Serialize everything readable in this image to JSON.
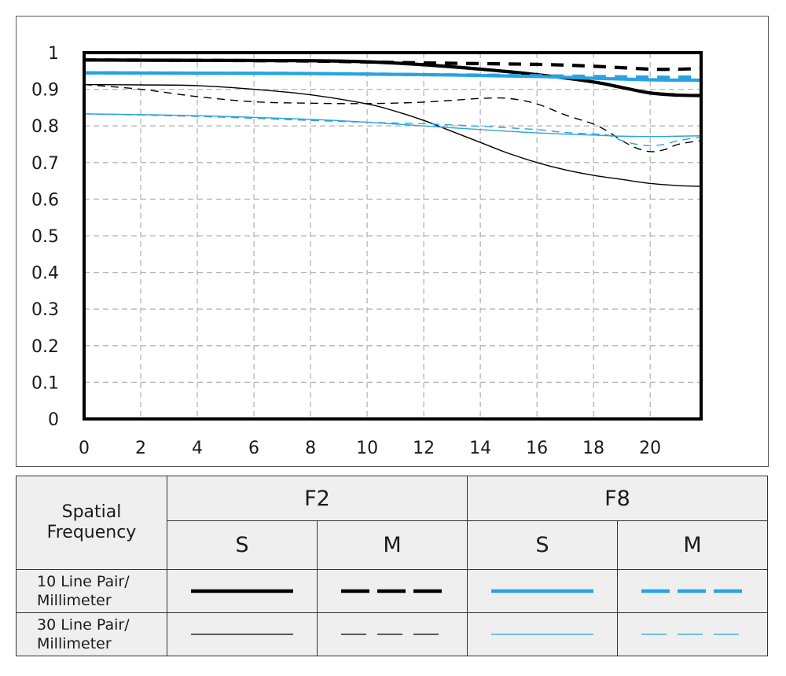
{
  "chart_data": {
    "type": "line",
    "title": "",
    "xlabel": "",
    "ylabel": "",
    "xlim": [
      0,
      21.8
    ],
    "ylim": [
      0,
      1
    ],
    "grid": true,
    "x_ticks": [
      "0",
      "2",
      "4",
      "6",
      "8",
      "10",
      "12",
      "14",
      "16",
      "18",
      "20"
    ],
    "y_ticks": [
      "0",
      "0.1",
      "0.2",
      "0.3",
      "0.4",
      "0.5",
      "0.6",
      "0.7",
      "0.8",
      "0.9",
      "1"
    ],
    "series": [
      {
        "name": "F2 S 10 Line Pair/Millimeter",
        "aperture": "F2",
        "direction": "S",
        "frequency": "10",
        "color": "#000000",
        "dashed": false,
        "weight": "thick",
        "x": [
          0,
          4,
          8,
          10,
          12,
          14,
          16,
          18,
          19,
          20,
          21,
          21.8
        ],
        "y": [
          0.98,
          0.979,
          0.978,
          0.975,
          0.967,
          0.955,
          0.94,
          0.92,
          0.905,
          0.89,
          0.884,
          0.883
        ]
      },
      {
        "name": "F2 M 10 Line Pair/Millimeter",
        "aperture": "F2",
        "direction": "M",
        "frequency": "10",
        "color": "#000000",
        "dashed": true,
        "weight": "thick",
        "x": [
          0,
          4,
          8,
          12,
          16,
          18,
          20,
          21,
          21.8
        ],
        "y": [
          0.98,
          0.979,
          0.977,
          0.972,
          0.968,
          0.963,
          0.955,
          0.955,
          0.957
        ]
      },
      {
        "name": "F2 S 30 Line Pair/Millimeter",
        "aperture": "F2",
        "direction": "S",
        "frequency": "30",
        "color": "#000000",
        "dashed": false,
        "weight": "thin",
        "x": [
          0,
          2,
          4,
          6,
          8,
          10,
          11,
          12,
          13,
          14,
          15,
          16,
          17,
          18,
          19,
          20,
          21,
          21.8
        ],
        "y": [
          0.913,
          0.912,
          0.91,
          0.9,
          0.885,
          0.86,
          0.84,
          0.815,
          0.785,
          0.755,
          0.725,
          0.7,
          0.68,
          0.665,
          0.654,
          0.643,
          0.637,
          0.635
        ]
      },
      {
        "name": "F2 M 30 Line Pair/Millimeter",
        "aperture": "F2",
        "direction": "M",
        "frequency": "30",
        "color": "#000000",
        "dashed": true,
        "weight": "thin",
        "x": [
          0,
          2,
          4,
          6,
          8,
          10,
          12,
          14,
          15,
          16,
          17,
          18,
          18.5,
          19,
          19.5,
          20,
          20.5,
          21,
          21.8
        ],
        "y": [
          0.913,
          0.9,
          0.88,
          0.866,
          0.862,
          0.861,
          0.865,
          0.875,
          0.875,
          0.86,
          0.83,
          0.805,
          0.785,
          0.76,
          0.74,
          0.73,
          0.735,
          0.75,
          0.76
        ]
      },
      {
        "name": "F8 S 10 Line Pair/Millimeter",
        "aperture": "F8",
        "direction": "S",
        "frequency": "10",
        "color": "#29a3e0",
        "dashed": false,
        "weight": "thick",
        "x": [
          0,
          4,
          8,
          12,
          16,
          18,
          20,
          21,
          21.8
        ],
        "y": [
          0.945,
          0.944,
          0.943,
          0.94,
          0.935,
          0.93,
          0.926,
          0.925,
          0.925
        ]
      },
      {
        "name": "F8 M 10 Line Pair/Millimeter",
        "aperture": "F8",
        "direction": "M",
        "frequency": "10",
        "color": "#29a3e0",
        "dashed": true,
        "weight": "thick",
        "x": [
          0,
          4,
          8,
          12,
          16,
          18,
          20,
          21,
          21.8
        ],
        "y": [
          0.945,
          0.944,
          0.943,
          0.94,
          0.937,
          0.935,
          0.933,
          0.933,
          0.934
        ]
      },
      {
        "name": "F8 S 30 Line Pair/Millimeter",
        "aperture": "F8",
        "direction": "S",
        "frequency": "30",
        "color": "#29a3e0",
        "dashed": false,
        "weight": "thin",
        "x": [
          0,
          4,
          8,
          10,
          12,
          14,
          16,
          18,
          19,
          20,
          21,
          21.8
        ],
        "y": [
          0.833,
          0.828,
          0.818,
          0.81,
          0.8,
          0.79,
          0.781,
          0.775,
          0.772,
          0.771,
          0.772,
          0.773
        ]
      },
      {
        "name": "F8 M 30 Line Pair/Millimeter",
        "aperture": "F8",
        "direction": "M",
        "frequency": "30",
        "color": "#29a3e0",
        "dashed": true,
        "weight": "thin",
        "x": [
          0,
          4,
          8,
          10,
          12,
          14,
          16,
          17,
          18,
          18.5,
          19,
          19.5,
          20,
          20.5,
          21,
          21.8
        ],
        "y": [
          0.833,
          0.826,
          0.815,
          0.81,
          0.806,
          0.799,
          0.79,
          0.782,
          0.778,
          0.775,
          0.76,
          0.75,
          0.746,
          0.75,
          0.76,
          0.77
        ]
      }
    ]
  },
  "legend": {
    "corner_label": "Spatial\nFrequency",
    "apertures": [
      "F2",
      "F8"
    ],
    "directions": [
      "S",
      "M",
      "S",
      "M"
    ],
    "rows": [
      {
        "label": "10 Line Pair/\nMillimeter"
      },
      {
        "label": "30 Line Pair/\nMillimeter"
      }
    ]
  }
}
